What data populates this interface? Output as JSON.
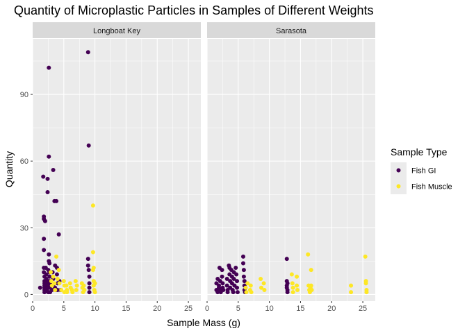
{
  "chart_data": {
    "type": "scatter",
    "title": "Quantity of Microplastic Particles in Samples of Different Weights",
    "xlabel": "Sample Mass (g)",
    "ylabel": "Quantity",
    "xlim": [
      0,
      27
    ],
    "ylim": [
      -3,
      115
    ],
    "x_ticks": [
      0,
      5,
      10,
      15,
      20,
      25
    ],
    "y_ticks": [
      0,
      30,
      60,
      90
    ],
    "x_tick_labels": [
      "0",
      "5",
      "10",
      "15",
      "20",
      "25"
    ],
    "y_tick_labels": [
      "0",
      "30",
      "60",
      "90"
    ],
    "grid": true,
    "legend": {
      "title": "Sample Type",
      "position": "right",
      "entries": [
        "Fish GI",
        "Fish Muscle"
      ]
    },
    "series_colors": {
      "Fish GI": "#440154",
      "Fish Muscle": "#FDE725"
    },
    "panels": [
      {
        "name": "Longboat Key",
        "series": [
          {
            "name": "Fish GI",
            "points": [
              [
                1.2,
                3
              ],
              [
                1.7,
                53
              ],
              [
                1.8,
                35
              ],
              [
                1.8,
                34
              ],
              [
                1.8,
                25
              ],
              [
                1.8,
                20
              ],
              [
                1.8,
                12
              ],
              [
                1.8,
                10
              ],
              [
                1.9,
                8
              ],
              [
                1.9,
                6
              ],
              [
                1.9,
                5
              ],
              [
                1.9,
                4
              ],
              [
                1.9,
                3
              ],
              [
                1.9,
                2
              ],
              [
                1.9,
                1
              ],
              [
                2.0,
                33
              ],
              [
                2.1,
                12
              ],
              [
                2.2,
                9
              ],
              [
                2.2,
                7
              ],
              [
                2.3,
                5
              ],
              [
                2.3,
                3
              ],
              [
                2.3,
                2
              ],
              [
                2.4,
                52
              ],
              [
                2.4,
                46
              ],
              [
                2.5,
                11
              ],
              [
                2.5,
                6
              ],
              [
                2.5,
                4
              ],
              [
                2.5,
                1
              ],
              [
                2.6,
                102
              ],
              [
                2.6,
                62
              ],
              [
                2.6,
                18
              ],
              [
                2.6,
                15
              ],
              [
                2.7,
                14
              ],
              [
                2.7,
                10
              ],
              [
                2.7,
                8
              ],
              [
                2.8,
                6
              ],
              [
                2.8,
                5
              ],
              [
                2.8,
                3
              ],
              [
                2.8,
                1
              ],
              [
                3.1,
                2
              ],
              [
                3.2,
                10
              ],
              [
                3.3,
                56
              ],
              [
                3.3,
                7
              ],
              [
                3.3,
                4
              ],
              [
                3.5,
                42
              ],
              [
                3.6,
                13
              ],
              [
                3.6,
                3
              ],
              [
                3.7,
                2
              ],
              [
                3.8,
                42
              ],
              [
                3.9,
                12
              ],
              [
                3.9,
                9
              ],
              [
                4.0,
                5
              ],
              [
                4.0,
                2
              ],
              [
                4.2,
                27
              ],
              [
                4.3,
                6
              ],
              [
                4.5,
                2
              ],
              [
                8.9,
                109
              ],
              [
                8.9,
                16
              ],
              [
                8.9,
                13
              ],
              [
                9.0,
                67
              ],
              [
                9.0,
                11
              ],
              [
                9.1,
                8
              ],
              [
                9.1,
                5
              ],
              [
                9.1,
                3
              ],
              [
                9.1,
                1
              ]
            ]
          },
          {
            "name": "Fish Muscle",
            "points": [
              [
                2.9,
                10
              ],
              [
                3.0,
                6
              ],
              [
                3.1,
                4
              ],
              [
                3.3,
                8
              ],
              [
                3.5,
                5
              ],
              [
                3.6,
                2
              ],
              [
                3.8,
                17
              ],
              [
                4.0,
                7
              ],
              [
                4.2,
                11
              ],
              [
                4.3,
                5
              ],
              [
                4.6,
                2
              ],
              [
                5.0,
                6
              ],
              [
                5.1,
                4
              ],
              [
                5.1,
                1
              ],
              [
                5.4,
                4
              ],
              [
                5.5,
                2
              ],
              [
                5.5,
                1
              ],
              [
                6.0,
                5
              ],
              [
                6.1,
                3
              ],
              [
                6.3,
                2
              ],
              [
                6.4,
                1
              ],
              [
                6.9,
                6
              ],
              [
                7.0,
                2
              ],
              [
                7.1,
                4
              ],
              [
                7.9,
                5
              ],
              [
                8.0,
                3
              ],
              [
                8.1,
                1
              ],
              [
                8.2,
                4
              ],
              [
                8.3,
                2
              ],
              [
                9.7,
                40
              ],
              [
                9.7,
                19
              ],
              [
                9.7,
                11
              ],
              [
                9.8,
                12
              ],
              [
                9.8,
                6
              ],
              [
                9.8,
                4
              ],
              [
                9.9,
                2
              ],
              [
                10.0,
                5
              ],
              [
                10.0,
                1
              ]
            ]
          }
        ]
      },
      {
        "name": "Sarasota",
        "series": [
          {
            "name": "Fish GI",
            "points": [
              [
                1.5,
                5
              ],
              [
                1.5,
                2
              ],
              [
                1.7,
                7
              ],
              [
                1.7,
                1
              ],
              [
                1.9,
                4
              ],
              [
                1.9,
                3
              ],
              [
                2.0,
                12
              ],
              [
                2.1,
                6
              ],
              [
                2.1,
                2
              ],
              [
                2.2,
                1
              ],
              [
                2.4,
                11
              ],
              [
                2.4,
                8
              ],
              [
                2.5,
                5
              ],
              [
                2.5,
                3
              ],
              [
                2.6,
                2
              ],
              [
                3.2,
                7
              ],
              [
                3.2,
                4
              ],
              [
                3.3,
                2
              ],
              [
                3.3,
                1
              ],
              [
                3.5,
                13
              ],
              [
                3.6,
                12
              ],
              [
                3.6,
                9
              ],
              [
                3.7,
                6
              ],
              [
                3.7,
                3
              ],
              [
                3.9,
                11
              ],
              [
                4.0,
                8
              ],
              [
                4.0,
                5
              ],
              [
                4.1,
                2
              ],
              [
                4.2,
                1
              ],
              [
                4.3,
                10
              ],
              [
                4.3,
                7
              ],
              [
                4.4,
                4
              ],
              [
                4.6,
                12
              ],
              [
                4.7,
                9
              ],
              [
                4.8,
                6
              ],
              [
                4.8,
                3
              ],
              [
                4.9,
                1
              ],
              [
                5.8,
                17
              ],
              [
                5.8,
                14
              ],
              [
                5.9,
                11
              ],
              [
                5.9,
                8
              ],
              [
                6.0,
                6
              ],
              [
                6.0,
                4
              ],
              [
                6.0,
                2
              ],
              [
                6.1,
                1
              ],
              [
                12.8,
                16
              ],
              [
                12.8,
                6
              ],
              [
                12.8,
                4
              ],
              [
                12.8,
                3
              ],
              [
                12.9,
                2
              ],
              [
                12.9,
                1
              ],
              [
                12.9,
                5
              ]
            ]
          },
          {
            "name": "Fish Muscle",
            "points": [
              [
                6.2,
                3
              ],
              [
                6.3,
                1
              ],
              [
                6.5,
                5
              ],
              [
                6.9,
                2
              ],
              [
                7.0,
                4
              ],
              [
                7.1,
                1
              ],
              [
                8.6,
                7
              ],
              [
                8.7,
                3
              ],
              [
                9.1,
                5
              ],
              [
                9.2,
                2
              ],
              [
                13.6,
                9
              ],
              [
                13.7,
                5
              ],
              [
                13.8,
                3
              ],
              [
                13.8,
                1
              ],
              [
                14.4,
                8
              ],
              [
                14.4,
                4
              ],
              [
                14.5,
                2
              ],
              [
                16.2,
                18
              ],
              [
                16.3,
                4
              ],
              [
                16.4,
                2
              ],
              [
                16.5,
                1
              ],
              [
                16.6,
                3
              ],
              [
                16.7,
                11
              ],
              [
                16.7,
                4
              ],
              [
                16.8,
                2
              ],
              [
                23.1,
                4
              ],
              [
                23.1,
                1
              ],
              [
                25.4,
                17
              ],
              [
                25.5,
                6
              ],
              [
                25.5,
                5
              ],
              [
                25.6,
                2
              ],
              [
                25.6,
                1
              ]
            ]
          }
        ]
      }
    ]
  }
}
